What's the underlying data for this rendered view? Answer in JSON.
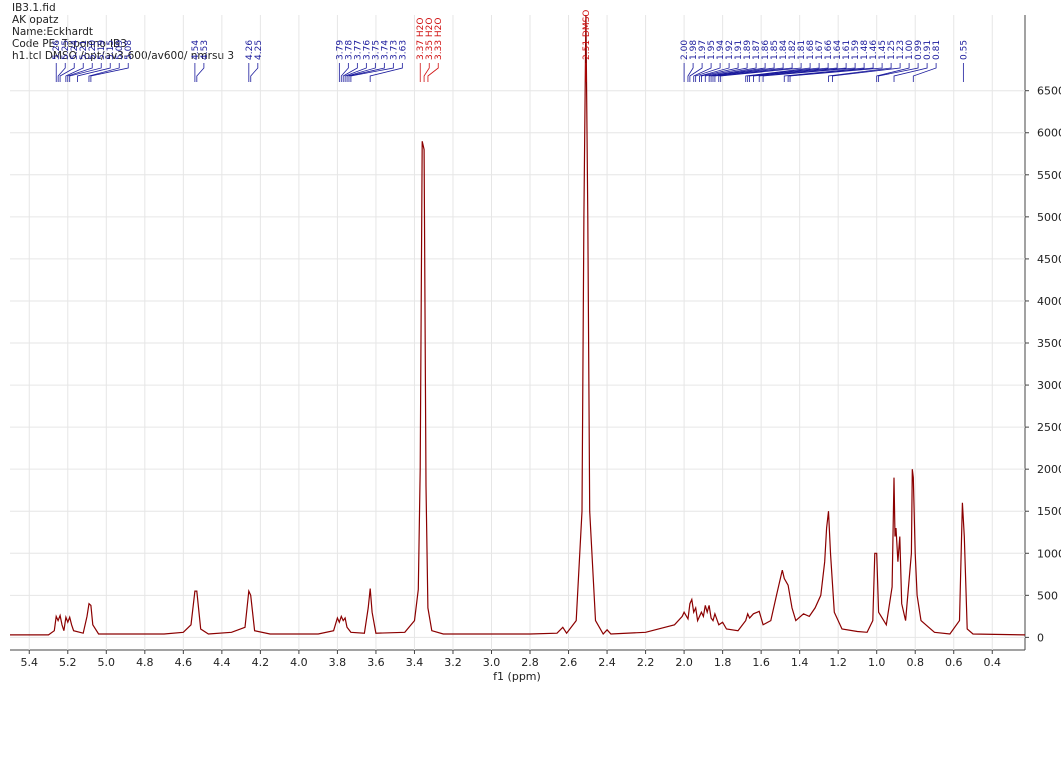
{
  "header": [
    "IB3.1.fid",
    "AK opatz",
    "Name:Eckhardt",
    "Code PE: Teponno-IB3",
    "h1.tcl DMSO /opt/av3-600/av600/ nmrsu 3"
  ],
  "chart_data": {
    "type": "line",
    "xlabel": "f1 (ppm)",
    "color": "#8b0000",
    "grid": true,
    "y_axis_side": "right",
    "x_reversed": true,
    "xlim": [
      5.5,
      0.23
    ],
    "ylim": [
      -150,
      7400
    ],
    "xticks": [
      5.4,
      5.2,
      {
        "value": 5,
        "label": "5.0"
      },
      4.8,
      4.6,
      4.4,
      4.2,
      {
        "value": 4,
        "label": "4.0"
      },
      3.8,
      3.6,
      3.4,
      3.2,
      {
        "value": 3,
        "label": "3.0"
      },
      2.8,
      2.6,
      2.4,
      2.2,
      {
        "value": 2,
        "label": "2.0"
      },
      1.8,
      1.6,
      1.4,
      1.2,
      {
        "value": 1,
        "label": "1.0"
      },
      0.8,
      0.6,
      0.4
    ],
    "yticks": [
      0,
      500,
      1000,
      1500,
      2000,
      2500,
      3000,
      3500,
      4000,
      4500,
      5000,
      5500,
      6000,
      6500
    ],
    "x": [
      5.5,
      5.3,
      5.27,
      5.26,
      5.25,
      5.24,
      5.23,
      5.22,
      5.21,
      5.2,
      5.19,
      5.18,
      5.17,
      5.12,
      5.1,
      5.09,
      5.08,
      5.07,
      5.04,
      4.9,
      4.7,
      4.6,
      4.56,
      4.54,
      4.53,
      4.51,
      4.47,
      4.35,
      4.28,
      4.26,
      4.25,
      4.23,
      4.15,
      3.9,
      3.82,
      3.8,
      3.79,
      3.78,
      3.77,
      3.76,
      3.75,
      3.73,
      3.66,
      3.64,
      3.63,
      3.62,
      3.6,
      3.45,
      3.4,
      3.38,
      3.37,
      3.36,
      3.35,
      3.34,
      3.33,
      3.31,
      3.25,
      2.8,
      2.66,
      2.63,
      2.61,
      2.56,
      2.53,
      2.52,
      2.51,
      2.5,
      2.49,
      2.46,
      2.42,
      2.4,
      2.38,
      2.2,
      2.05,
      2.01,
      2,
      1.98,
      1.97,
      1.96,
      1.95,
      1.94,
      1.93,
      1.91,
      1.9,
      1.89,
      1.88,
      1.87,
      1.86,
      1.85,
      1.84,
      1.82,
      1.8,
      1.78,
      1.72,
      1.68,
      1.67,
      1.66,
      1.64,
      1.62,
      1.61,
      1.59,
      1.55,
      1.52,
      1.49,
      1.48,
      1.46,
      1.44,
      1.42,
      1.38,
      1.35,
      1.32,
      1.29,
      1.27,
      1.26,
      1.25,
      1.24,
      1.22,
      1.18,
      1.1,
      1.05,
      1.02,
      1.01,
      1,
      0.99,
      0.95,
      0.92,
      0.91,
      0.905,
      0.9,
      0.89,
      0.88,
      0.87,
      0.85,
      0.82,
      0.815,
      0.81,
      0.8,
      0.79,
      0.77,
      0.73,
      0.7,
      0.62,
      0.57,
      0.555,
      0.545,
      0.53,
      0.5,
      0.23
    ],
    "values": [
      30,
      30,
      80,
      250,
      200,
      260,
      150,
      80,
      240,
      180,
      240,
      150,
      80,
      50,
      250,
      400,
      380,
      150,
      40,
      40,
      40,
      60,
      150,
      550,
      550,
      100,
      40,
      60,
      120,
      550,
      500,
      80,
      40,
      40,
      80,
      230,
      180,
      250,
      200,
      230,
      120,
      60,
      50,
      350,
      580,
      300,
      50,
      60,
      200,
      570,
      2000,
      5900,
      5800,
      1800,
      350,
      80,
      40,
      40,
      50,
      120,
      50,
      200,
      1500,
      5000,
      7400,
      5000,
      1500,
      200,
      40,
      90,
      40,
      60,
      150,
      250,
      300,
      220,
      400,
      450,
      300,
      350,
      200,
      300,
      250,
      380,
      300,
      380,
      230,
      200,
      280,
      150,
      180,
      100,
      80,
      200,
      280,
      230,
      280,
      300,
      310,
      150,
      200,
      500,
      800,
      700,
      620,
      350,
      200,
      280,
      250,
      350,
      500,
      900,
      1300,
      1500,
      1000,
      300,
      100,
      70,
      60,
      200,
      1000,
      1000,
      300,
      150,
      600,
      1900,
      1200,
      1300,
      900,
      1200,
      400,
      200,
      1000,
      2000,
      1900,
      1000,
      500,
      200,
      120,
      60,
      40,
      200,
      1600,
      1200,
      100,
      40,
      30
    ],
    "peak_labels": [
      "5.26",
      "5.25",
      "5.24",
      "5.21",
      "5.20",
      "5.19",
      "5.15",
      "5.09",
      "5.08",
      "4.54",
      "4.53",
      "4.26",
      "4.25",
      "3.79",
      "3.78",
      "3.77",
      "3.76",
      "3.75",
      "3.74",
      "3.73",
      "3.63",
      "2.00",
      "1.98",
      "1.97",
      "1.95",
      "1.94",
      "1.92",
      "1.91",
      "1.89",
      "1.87",
      "1.86",
      "1.85",
      "1.84",
      "1.82",
      "1.81",
      "1.68",
      "1.67",
      "1.66",
      "1.64",
      "1.61",
      "1.59",
      "1.48",
      "1.46",
      "1.45",
      "1.25",
      "1.23",
      "1.00",
      "0.99",
      "0.91",
      "0.81",
      "0.55"
    ],
    "solvent_labels": [
      "3.37 H2O",
      "3.35 H2O",
      "3.33 H2O",
      "2.51 DMSO"
    ]
  }
}
